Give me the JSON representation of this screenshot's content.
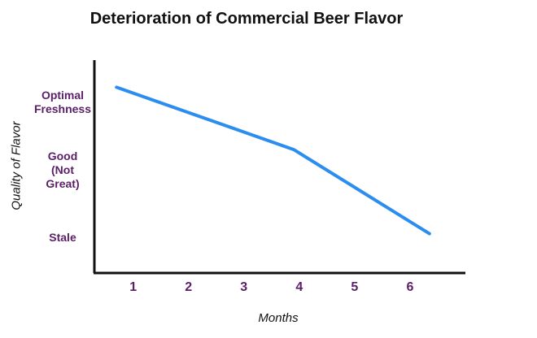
{
  "chart_data": {
    "type": "line",
    "title": "Deterioration of Commercial Beer Flavor",
    "xlabel": "Months",
    "ylabel": "Quality of Flavor",
    "x_ticks": [
      "1",
      "2",
      "3",
      "4",
      "5",
      "6"
    ],
    "y_ticks": [
      {
        "label": "Stale",
        "value": 0
      },
      {
        "label": "Good\n(Not\nGreat)",
        "value": 1
      },
      {
        "label": "Optimal\nFreshness",
        "value": 2
      }
    ],
    "series": [
      {
        "x": [
          0.7,
          3.9,
          6.35
        ],
        "y": [
          2.22,
          1.3,
          0.06
        ]
      }
    ],
    "xlim": [
      0.3,
      7.0
    ],
    "ylim": [
      -0.52,
      2.62
    ],
    "grid": false,
    "line_color": "#2b8def",
    "axis_color": "#111111",
    "tick_color": "#5a1f66"
  }
}
